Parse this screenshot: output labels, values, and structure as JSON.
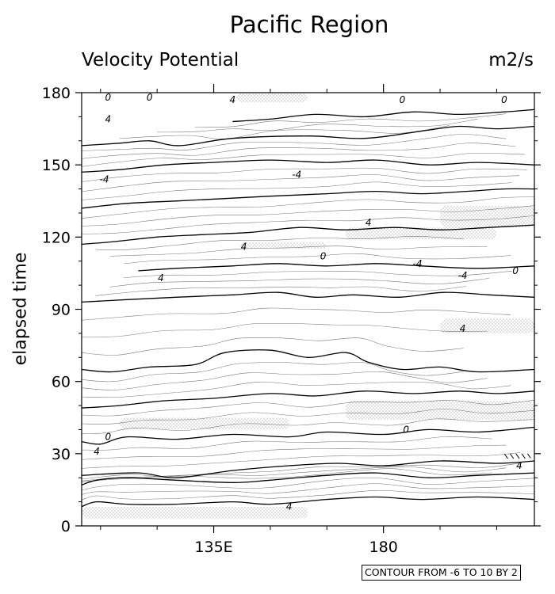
{
  "chart_data": {
    "type": "contour",
    "title": "Pacific Region",
    "subtitle": "Velocity Potential",
    "units": "m2/s",
    "xlabel": "",
    "ylabel": "elapsed time",
    "xlim": [
      100,
      220
    ],
    "ylim": [
      0,
      180
    ],
    "x_ticks": [
      {
        "value": 135,
        "label": "135E"
      },
      {
        "value": 180,
        "label": "180"
      }
    ],
    "y_ticks": [
      {
        "value": 0,
        "label": "0"
      },
      {
        "value": 30,
        "label": "30"
      },
      {
        "value": 60,
        "label": "60"
      },
      {
        "value": 90,
        "label": "90"
      },
      {
        "value": 120,
        "label": "120"
      },
      {
        "value": 150,
        "label": "150"
      },
      {
        "value": 180,
        "label": "180"
      }
    ],
    "x_minor_step": 15,
    "y_minor_step": 10,
    "contour_levels": {
      "from": -6,
      "to": 10,
      "by": 2
    },
    "footnote": "CONTOUR FROM -6 TO 10 BY 2",
    "zero_contours": [
      [
        [
          100,
          8
        ],
        [
          104,
          10
        ],
        [
          112,
          9
        ],
        [
          125,
          9
        ],
        [
          140,
          10
        ],
        [
          150,
          9
        ],
        [
          165,
          11
        ],
        [
          178,
          12
        ],
        [
          190,
          11
        ],
        [
          205,
          12
        ],
        [
          220,
          11
        ]
      ],
      [
        [
          100,
          17
        ],
        [
          104,
          19
        ],
        [
          112,
          20
        ],
        [
          125,
          19
        ],
        [
          140,
          18
        ],
        [
          150,
          19
        ],
        [
          165,
          21
        ],
        [
          178,
          22
        ],
        [
          192,
          20
        ],
        [
          205,
          21
        ],
        [
          220,
          22
        ]
      ],
      [
        [
          100,
          21
        ],
        [
          115,
          22
        ],
        [
          125,
          20
        ],
        [
          140,
          23
        ],
        [
          155,
          25
        ],
        [
          168,
          26
        ],
        [
          180,
          25
        ],
        [
          195,
          27
        ],
        [
          210,
          26
        ],
        [
          220,
          27
        ]
      ],
      [
        [
          100,
          35
        ],
        [
          105,
          34
        ],
        [
          112,
          37
        ],
        [
          125,
          36
        ],
        [
          140,
          38
        ],
        [
          155,
          37
        ],
        [
          165,
          39
        ],
        [
          180,
          38
        ],
        [
          192,
          40
        ],
        [
          205,
          39
        ],
        [
          220,
          41
        ]
      ],
      [
        [
          100,
          49
        ],
        [
          110,
          50
        ],
        [
          122,
          52
        ],
        [
          135,
          53
        ],
        [
          150,
          55
        ],
        [
          162,
          54
        ],
        [
          175,
          56
        ],
        [
          188,
          55
        ],
        [
          200,
          56
        ],
        [
          210,
          55
        ],
        [
          220,
          56
        ]
      ],
      [
        [
          100,
          65
        ],
        [
          108,
          64
        ],
        [
          118,
          66
        ],
        [
          130,
          67
        ],
        [
          138,
          72
        ],
        [
          150,
          73
        ],
        [
          160,
          70
        ],
        [
          170,
          72
        ],
        [
          176,
          68
        ],
        [
          185,
          65
        ],
        [
          195,
          66
        ],
        [
          205,
          64
        ],
        [
          220,
          65
        ]
      ],
      [
        [
          100,
          93
        ],
        [
          112,
          94
        ],
        [
          125,
          95
        ],
        [
          140,
          96
        ],
        [
          152,
          97
        ],
        [
          162,
          95
        ],
        [
          172,
          96
        ],
        [
          184,
          95
        ],
        [
          196,
          97
        ],
        [
          208,
          96
        ],
        [
          220,
          95
        ]
      ],
      [
        [
          115,
          106
        ],
        [
          125,
          107
        ],
        [
          140,
          108
        ],
        [
          152,
          109
        ],
        [
          165,
          108
        ],
        [
          178,
          109
        ],
        [
          190,
          108
        ],
        [
          205,
          107
        ],
        [
          220,
          108
        ]
      ],
      [
        [
          100,
          117
        ],
        [
          108,
          118
        ],
        [
          120,
          120
        ],
        [
          132,
          121
        ],
        [
          145,
          122
        ],
        [
          158,
          124
        ],
        [
          170,
          123
        ],
        [
          183,
          124
        ],
        [
          195,
          123
        ],
        [
          208,
          124
        ],
        [
          220,
          125
        ]
      ],
      [
        [
          100,
          132
        ],
        [
          112,
          134
        ],
        [
          125,
          135
        ],
        [
          138,
          136
        ],
        [
          150,
          137
        ],
        [
          165,
          138
        ],
        [
          178,
          139
        ],
        [
          190,
          138
        ],
        [
          202,
          139
        ],
        [
          212,
          140
        ],
        [
          220,
          140
        ]
      ],
      [
        [
          100,
          147
        ],
        [
          110,
          148
        ],
        [
          122,
          150
        ],
        [
          135,
          151
        ],
        [
          150,
          152
        ],
        [
          165,
          151
        ],
        [
          178,
          152
        ],
        [
          192,
          150
        ],
        [
          205,
          151
        ],
        [
          220,
          150
        ]
      ],
      [
        [
          100,
          158
        ],
        [
          110,
          159
        ],
        [
          118,
          160
        ],
        [
          126,
          158
        ],
        [
          140,
          161
        ],
        [
          160,
          162
        ],
        [
          175,
          161
        ],
        [
          190,
          164
        ],
        [
          200,
          166
        ],
        [
          210,
          165
        ],
        [
          220,
          166
        ]
      ],
      [
        [
          140,
          168
        ],
        [
          150,
          169
        ],
        [
          162,
          171
        ],
        [
          175,
          170
        ],
        [
          188,
          172
        ],
        [
          200,
          171
        ],
        [
          212,
          172
        ],
        [
          220,
          173
        ]
      ]
    ],
    "contour_labels": [
      {
        "x": 107,
        "y": 178,
        "text": "0"
      },
      {
        "x": 118,
        "y": 178,
        "text": "0"
      },
      {
        "x": 107,
        "y": 169,
        "text": "4"
      },
      {
        "x": 140,
        "y": 177,
        "text": "4"
      },
      {
        "x": 185,
        "y": 177,
        "text": "0"
      },
      {
        "x": 212,
        "y": 177,
        "text": "0"
      },
      {
        "x": 106,
        "y": 144,
        "text": "-4"
      },
      {
        "x": 157,
        "y": 146,
        "text": "-4"
      },
      {
        "x": 176,
        "y": 126,
        "text": "4"
      },
      {
        "x": 143,
        "y": 116,
        "text": "4"
      },
      {
        "x": 164,
        "y": 112,
        "text": "0"
      },
      {
        "x": 189,
        "y": 109,
        "text": "-4"
      },
      {
        "x": 201,
        "y": 104,
        "text": "-4"
      },
      {
        "x": 215,
        "y": 106,
        "text": "0"
      },
      {
        "x": 121,
        "y": 103,
        "text": "4"
      },
      {
        "x": 201,
        "y": 82,
        "text": "4"
      },
      {
        "x": 107,
        "y": 37,
        "text": "0"
      },
      {
        "x": 104,
        "y": 31,
        "text": "4"
      },
      {
        "x": 186,
        "y": 40,
        "text": "0"
      },
      {
        "x": 216,
        "y": 25,
        "text": "4"
      },
      {
        "x": 155,
        "y": 8,
        "text": "4"
      }
    ],
    "stippled_regions": [
      {
        "x": [
          110,
          155
        ],
        "y": [
          40,
          45
        ]
      },
      {
        "x": [
          170,
          220
        ],
        "y": [
          44,
          52
        ]
      },
      {
        "x": [
          195,
          220
        ],
        "y": [
          124,
          133
        ]
      },
      {
        "x": [
          170,
          210
        ],
        "y": [
          119,
          124
        ]
      },
      {
        "x": [
          142,
          165
        ],
        "y": [
          115,
          118
        ]
      },
      {
        "x": [
          141,
          160
        ],
        "y": [
          176,
          180
        ]
      },
      {
        "x": [
          100,
          160
        ],
        "y": [
          3,
          8
        ]
      },
      {
        "x": [
          195,
          220
        ],
        "y": [
          80,
          86
        ]
      }
    ],
    "hatched_regions": [
      {
        "x": [
          212,
          219
        ],
        "y": [
          28,
          30
        ]
      }
    ],
    "grid": false,
    "legend": "none"
  }
}
